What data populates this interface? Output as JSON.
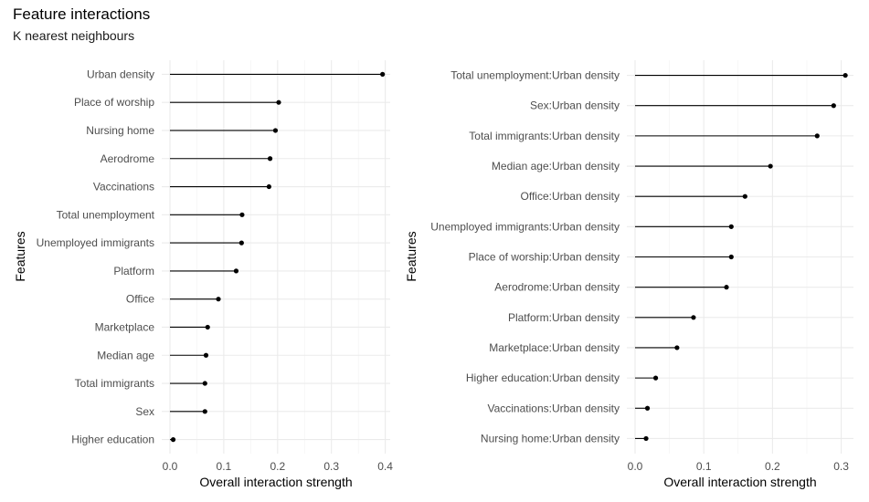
{
  "header": {
    "title": "Feature interactions",
    "subtitle": "K nearest neighbours"
  },
  "chart_data": [
    {
      "type": "lollipop",
      "xlabel": "Overall interaction strength",
      "ylabel": "Features",
      "xlim": [
        0.0,
        0.41
      ],
      "xticks": [
        0.0,
        0.1,
        0.2,
        0.3,
        0.4
      ],
      "xtick_labels": [
        "0.0",
        "0.1",
        "0.2",
        "0.3",
        "0.4"
      ],
      "grid": true,
      "categories": [
        "Urban density",
        "Place of worship",
        "Nursing home",
        "Aerodrome",
        "Vaccinations",
        "Total unemployment",
        "Unemployed immigrants",
        "Platform",
        "Office",
        "Marketplace",
        "Median age",
        "Total immigrants",
        "Sex",
        "Higher education"
      ],
      "values": [
        0.395,
        0.202,
        0.196,
        0.186,
        0.184,
        0.134,
        0.133,
        0.123,
        0.09,
        0.07,
        0.067,
        0.065,
        0.065,
        0.006
      ]
    },
    {
      "type": "lollipop",
      "xlabel": "Overall interaction strength",
      "ylabel": "Features",
      "xlim": [
        0.0,
        0.315
      ],
      "xticks": [
        0.0,
        0.1,
        0.2,
        0.3
      ],
      "xtick_labels": [
        "0.0",
        "0.1",
        "0.2",
        "0.3"
      ],
      "grid": true,
      "categories": [
        "Total unemployment:Urban density",
        "Sex:Urban density",
        "Total immigrants:Urban density",
        "Median age:Urban density",
        "Office:Urban density",
        "Unemployed immigrants:Urban density",
        "Place of worship:Urban density",
        "Aerodrome:Urban density",
        "Platform:Urban density",
        "Marketplace:Urban density",
        "Higher education:Urban density",
        "Vaccinations:Urban density",
        "Nursing home:Urban density"
      ],
      "values": [
        0.306,
        0.289,
        0.265,
        0.197,
        0.16,
        0.14,
        0.14,
        0.133,
        0.085,
        0.061,
        0.03,
        0.018,
        0.016
      ]
    }
  ]
}
